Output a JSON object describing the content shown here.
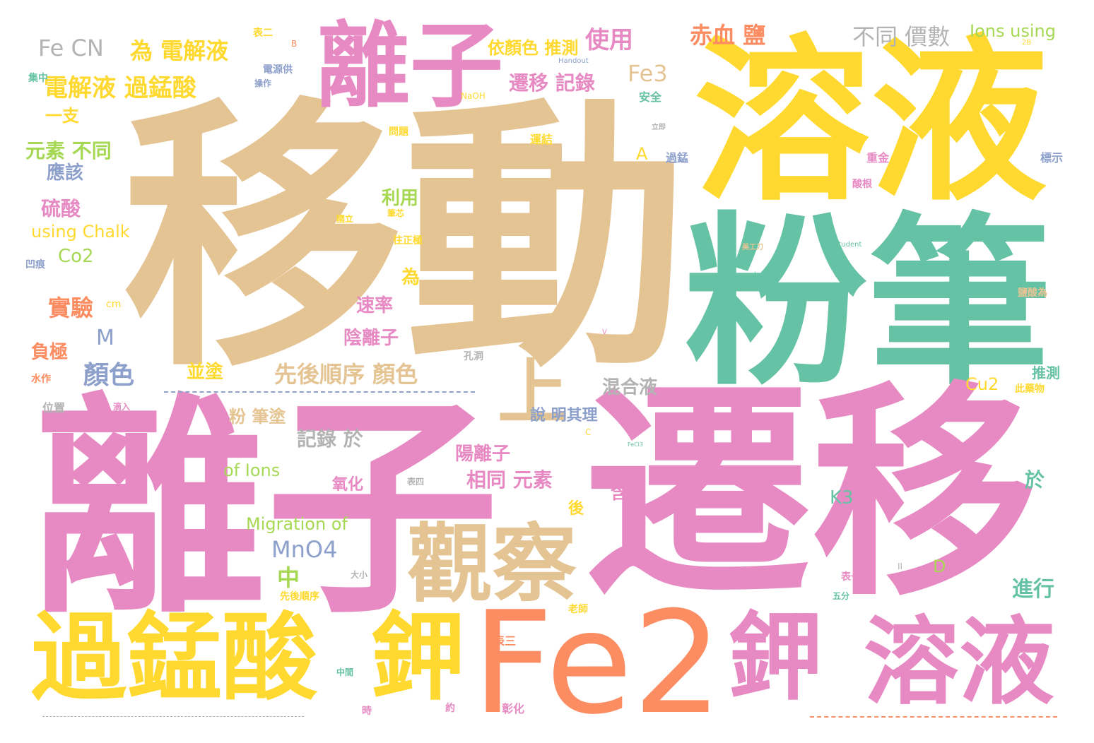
{
  "palette": {
    "tan": "#e5c494",
    "pink": "#e78ac3",
    "yellow": "#ffd92f",
    "teal": "#66c2a5",
    "orange": "#fc8d62",
    "green": "#a6d854",
    "blue": "#8da0cb",
    "grey": "#b3b3b3"
  },
  "words": [
    {
      "t": "移動",
      "c": "tan"
    },
    {
      "t": "溶液",
      "c": "yellow"
    },
    {
      "t": "粉筆",
      "c": "teal"
    },
    {
      "t": "離子",
      "c": "pink"
    },
    {
      "t": "遷移",
      "c": "pink"
    },
    {
      "t": "離子",
      "c": "pink"
    },
    {
      "t": "Fe2",
      "c": "orange"
    },
    {
      "t": "過錳酸",
      "c": "yellow"
    },
    {
      "t": "鉀",
      "c": "yellow"
    },
    {
      "t": "鉀",
      "c": "pink"
    },
    {
      "t": "溶液",
      "c": "pink"
    },
    {
      "t": "觀察",
      "c": "tan"
    },
    {
      "t": "上",
      "c": "tan"
    },
    {
      "t": "Fe CN",
      "c": "grey"
    },
    {
      "t": "為 電解液",
      "c": "yellow"
    },
    {
      "t": "電解液 過錳酸",
      "c": "yellow"
    },
    {
      "t": "依顏色 推測",
      "c": "yellow"
    },
    {
      "t": "使用",
      "c": "pink"
    },
    {
      "t": "赤血 鹽",
      "c": "orange"
    },
    {
      "t": "不同 價數",
      "c": "grey"
    },
    {
      "t": "Ions using",
      "c": "green"
    },
    {
      "t": "Fe3",
      "c": "tan"
    },
    {
      "t": "遷移 記錄",
      "c": "pink"
    },
    {
      "t": "一支",
      "c": "yellow"
    },
    {
      "t": "元素 不同",
      "c": "green"
    },
    {
      "t": "應該",
      "c": "blue"
    },
    {
      "t": "硫酸",
      "c": "pink"
    },
    {
      "t": "利用",
      "c": "green"
    },
    {
      "t": "using Chalk",
      "c": "yellow"
    },
    {
      "t": "Co2",
      "c": "green"
    },
    {
      "t": "實驗",
      "c": "orange"
    },
    {
      "t": "M",
      "c": "blue"
    },
    {
      "t": "顏色",
      "c": "blue"
    },
    {
      "t": "負極",
      "c": "orange"
    },
    {
      "t": "速率",
      "c": "pink"
    },
    {
      "t": "陰離子",
      "c": "pink"
    },
    {
      "t": "為",
      "c": "yellow"
    },
    {
      "t": "A",
      "c": "yellow"
    },
    {
      "t": "先後順序 顏色",
      "c": "tan"
    },
    {
      "t": "並塗",
      "c": "yellow"
    },
    {
      "t": "粉 筆塗",
      "c": "tan"
    },
    {
      "t": "記錄 於",
      "c": "grey"
    },
    {
      "t": "混合液",
      "c": "grey"
    },
    {
      "t": "說 明其理",
      "c": "blue"
    },
    {
      "t": "陽離子",
      "c": "pink"
    },
    {
      "t": "相同 元素",
      "c": "pink"
    },
    {
      "t": "of Ions",
      "c": "green"
    },
    {
      "t": "Migration of",
      "c": "green"
    },
    {
      "t": "氧化",
      "c": "pink"
    },
    {
      "t": "MnO4",
      "c": "blue"
    },
    {
      "t": "中",
      "c": "green"
    },
    {
      "t": "K3",
      "c": "teal"
    },
    {
      "t": "進行",
      "c": "teal"
    },
    {
      "t": "Cu2",
      "c": "yellow"
    },
    {
      "t": "D",
      "c": "green"
    },
    {
      "t": "推測",
      "c": "teal"
    },
    {
      "t": "於",
      "c": "teal"
    },
    {
      "t": "後",
      "c": "yellow"
    },
    {
      "t": "含",
      "c": "pink"
    },
    {
      "t": "表三",
      "c": "orange"
    },
    {
      "t": "安全",
      "c": "teal"
    },
    {
      "t": "運結",
      "c": "yellow"
    },
    {
      "t": "過錳",
      "c": "blue"
    },
    {
      "t": "重金",
      "c": "pink"
    },
    {
      "t": "標示",
      "c": "blue"
    },
    {
      "t": "酸根",
      "c": "pink"
    },
    {
      "t": "表二",
      "c": "yellow"
    },
    {
      "t": "電源供",
      "c": "blue"
    },
    {
      "t": "集中",
      "c": "teal"
    },
    {
      "t": "操作",
      "c": "blue"
    },
    {
      "t": "Handout",
      "c": "blue"
    },
    {
      "t": "Student",
      "c": "teal"
    },
    {
      "t": "NaOH",
      "c": "yellow"
    },
    {
      "t": "表四",
      "c": "grey"
    },
    {
      "t": "先後順序",
      "c": "yellow"
    },
    {
      "t": "表一",
      "c": "pink"
    },
    {
      "t": "五分",
      "c": "teal"
    },
    {
      "t": "老師",
      "c": "yellow"
    },
    {
      "t": "水作",
      "c": "orange"
    },
    {
      "t": "位置",
      "c": "grey"
    },
    {
      "t": "孔洞",
      "c": "grey"
    },
    {
      "t": "凹痕",
      "c": "blue"
    },
    {
      "t": "滴入",
      "c": "pink"
    },
    {
      "t": "彰化",
      "c": "pink"
    },
    {
      "t": "約",
      "c": "pink"
    },
    {
      "t": "時",
      "c": "pink"
    },
    {
      "t": "中間",
      "c": "teal"
    },
    {
      "t": "大小",
      "c": "grey"
    },
    {
      "t": "cm",
      "c": "yellow"
    },
    {
      "t": "此藥物",
      "c": "yellow"
    },
    {
      "t": "問題",
      "c": "yellow"
    },
    {
      "t": "往正極",
      "c": "yellow"
    },
    {
      "t": "筆芯",
      "c": "yellow"
    },
    {
      "t": "國立",
      "c": "yellow"
    },
    {
      "t": "立即",
      "c": "grey"
    },
    {
      "t": "鹽酸為",
      "c": "tan"
    },
    {
      "t": "美工刀",
      "c": "tan"
    },
    {
      "t": "B",
      "c": "orange"
    },
    {
      "t": "C",
      "c": "yellow"
    },
    {
      "t": "II",
      "c": "grey"
    },
    {
      "t": "V",
      "c": "pink"
    },
    {
      "t": "2B",
      "c": "yellow"
    },
    {
      "t": "FeCl3",
      "c": "teal"
    },
    {
      "t": "FeCl2",
      "c": "pink"
    }
  ]
}
